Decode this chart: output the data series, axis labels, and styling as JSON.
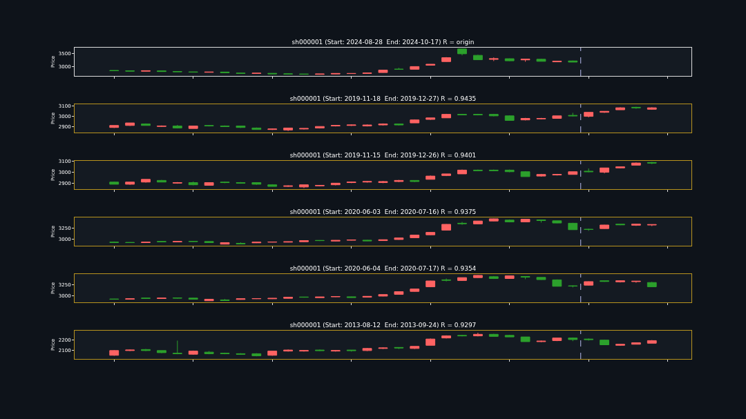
{
  "chart_data": [
    {
      "type": "candlestick",
      "title": "sh000001 (Start: 2024-08-28  End: 2024-10-17) R = origin",
      "ylabel": "Price",
      "tick_labels": "y",
      "categories": [
        null,
        null,
        null,
        null,
        null,
        null,
        null,
        null,
        null,
        null,
        null,
        null,
        null,
        null,
        null,
        null,
        null,
        null,
        null,
        null,
        null,
        null,
        null,
        null,
        null,
        null,
        null,
        null,
        null,
        null,
        null,
        null,
        null,
        null,
        null,
        null,
        null,
        null,
        null
      ],
      "ohlc": [
        null,
        null,
        [
          2850,
          2855,
          2830,
          2840
        ],
        [
          2835,
          2840,
          2815,
          2825
        ],
        [
          2820,
          2850,
          2815,
          2840
        ],
        [
          2835,
          2840,
          2805,
          2810
        ],
        [
          2810,
          2820,
          2795,
          2800
        ],
        [
          2795,
          2800,
          2780,
          2785
        ],
        [
          2780,
          2795,
          2775,
          2790
        ],
        [
          2790,
          2790,
          2765,
          2765
        ],
        [
          2750,
          2760,
          2730,
          2735
        ],
        [
          2735,
          2745,
          2720,
          2745
        ],
        [
          2740,
          2745,
          2720,
          2720
        ],
        [
          2720,
          2730,
          2710,
          2715
        ],
        [
          2715,
          2720,
          2700,
          2705
        ],
        [
          2700,
          2720,
          2690,
          2715
        ],
        [
          2715,
          2740,
          2710,
          2735
        ],
        [
          2730,
          2745,
          2725,
          2735
        ],
        [
          2735,
          2755,
          2730,
          2750
        ],
        [
          2770,
          2865,
          2765,
          2865
        ],
        [
          2900,
          2950,
          2890,
          2895
        ],
        [
          2895,
          3000,
          2890,
          3000
        ],
        [
          3050,
          3090,
          3045,
          3090
        ],
        [
          3190,
          3360,
          3185,
          3340
        ],
        [
          3675,
          3675,
          3430,
          3490
        ],
        [
          3430,
          3450,
          3250,
          3260
        ],
        [
          3275,
          3350,
          3210,
          3300
        ],
        [
          3300,
          3310,
          3210,
          3220
        ],
        [
          3255,
          3285,
          3185,
          3285
        ],
        [
          3280,
          3300,
          3200,
          3200
        ],
        [
          3180,
          3220,
          3170,
          3205
        ],
        [
          3215,
          3230,
          3170,
          3170
        ],
        null,
        null,
        null,
        null,
        null,
        null,
        null
      ],
      "colors": [
        null,
        null,
        "#2ca02c",
        "#2ca02c",
        "#ff6363",
        "#2ca02c",
        "#2ca02c",
        "#2ca02c",
        "#ff6363",
        "#2ca02c",
        "#2ca02c",
        "#ff6363",
        "#2ca02c",
        "#2ca02c",
        "#2ca02c",
        "#ff6363",
        "#ff6363",
        "#ff6363",
        "#ff6363",
        "#ff6363",
        "#2ca02c",
        "#ff6363",
        "#ff6363",
        "#ff6363",
        "#2ca02c",
        "#2ca02c",
        "#ff6363",
        "#2ca02c",
        "#ff6363",
        "#2ca02c",
        "#ff6363",
        "#2ca02c",
        null,
        null,
        null,
        null,
        null,
        null,
        null
      ],
      "ylim": [
        2640,
        3725
      ],
      "yticks": [
        3000,
        3500
      ]
    },
    {
      "type": "candlestick",
      "title": "sh000001 (Start: 2019-11-18  End: 2019-12-27) R = 0.9435",
      "ylabel": "Price",
      "tick_labels": "y",
      "categories": [
        null,
        null,
        null,
        null,
        null,
        null,
        null,
        null,
        null,
        null,
        null,
        null,
        null,
        null,
        null,
        null,
        null,
        null,
        null,
        null,
        null,
        null,
        null,
        null,
        null,
        null,
        null,
        null,
        null,
        null,
        null,
        null,
        null,
        null,
        null,
        null,
        null,
        null,
        null
      ],
      "ohlc": [
        null,
        null,
        [
          2890,
          2910,
          2885,
          2910
        ],
        [
          2910,
          2935,
          2905,
          2935
        ],
        [
          2925,
          2930,
          2910,
          2910
        ],
        [
          2900,
          2910,
          2895,
          2905
        ],
        [
          2905,
          2915,
          2880,
          2885
        ],
        [
          2880,
          2905,
          2880,
          2905
        ],
        [
          2910,
          2915,
          2900,
          2905
        ],
        [
          2905,
          2910,
          2895,
          2900
        ],
        [
          2905,
          2905,
          2885,
          2890
        ],
        [
          2885,
          2890,
          2870,
          2870
        ],
        [
          2870,
          2880,
          2865,
          2875
        ],
        [
          2865,
          2885,
          2855,
          2885
        ],
        [
          2875,
          2880,
          2870,
          2880
        ],
        [
          2885,
          2900,
          2880,
          2900
        ],
        [
          2905,
          2915,
          2900,
          2910
        ],
        [
          2910,
          2920,
          2905,
          2915
        ],
        [
          2905,
          2920,
          2900,
          2915
        ],
        [
          2915,
          2930,
          2910,
          2925
        ],
        [
          2925,
          2925,
          2910,
          2915
        ],
        [
          2935,
          2970,
          2935,
          2965
        ],
        [
          2970,
          2985,
          2965,
          2985
        ],
        [
          2985,
          3025,
          2985,
          3020
        ],
        [
          3020,
          3025,
          3015,
          3015
        ],
        [
          3020,
          3025,
          3010,
          3015
        ],
        [
          3020,
          3025,
          3000,
          3005
        ],
        [
          3005,
          3010,
          2960,
          2960
        ],
        [
          2965,
          2985,
          2960,
          2980
        ],
        [
          2975,
          2985,
          2970,
          2980
        ],
        [
          2980,
          3005,
          2980,
          3005
        ],
        [
          3010,
          3035,
          3000,
          3005
        ],
        [
          3000,
          3040,
          2990,
          3040
        ],
        [
          3040,
          3050,
          3035,
          3050
        ],
        [
          3065,
          3090,
          3065,
          3085
        ],
        [
          3090,
          3095,
          3075,
          3085
        ],
        [
          3070,
          3090,
          3065,
          3085
        ],
        null,
        null
      ],
      "colors": [
        null,
        null,
        "#ff6363",
        "#ff6363",
        "#2ca02c",
        "#ff6363",
        "#2ca02c",
        "#ff6363",
        "#2ca02c",
        "#2ca02c",
        "#2ca02c",
        "#2ca02c",
        "#ff6363",
        "#ff6363",
        "#ff6363",
        "#ff6363",
        "#ff6363",
        "#ff6363",
        "#ff6363",
        "#ff6363",
        "#2ca02c",
        "#ff6363",
        "#ff6363",
        "#ff6363",
        "#2ca02c",
        "#2ca02c",
        "#2ca02c",
        "#2ca02c",
        "#ff6363",
        "#ff6363",
        "#ff6363",
        "#2ca02c",
        "#ff6363",
        "#ff6363",
        "#ff6363",
        "#2ca02c",
        "#ff6363",
        null,
        null
      ],
      "ylim": [
        2840,
        3120
      ],
      "yticks": [
        2900,
        3000,
        3100
      ]
    },
    {
      "type": "candlestick",
      "title": "sh000001 (Start: 2019-11-15  End: 2019-12-26) R = 0.9401",
      "ylabel": "Price",
      "tick_labels": "y",
      "categories": [
        null,
        null,
        null,
        null,
        null,
        null,
        null,
        null,
        null,
        null,
        null,
        null,
        null,
        null,
        null,
        null,
        null,
        null,
        null,
        null,
        null,
        null,
        null,
        null,
        null,
        null,
        null,
        null,
        null,
        null,
        null,
        null,
        null,
        null,
        null,
        null,
        null,
        null,
        null
      ],
      "ohlc": [
        null,
        null,
        [
          2910,
          2915,
          2890,
          2890
        ],
        [
          2890,
          2910,
          2885,
          2910
        ],
        [
          2910,
          2935,
          2905,
          2935
        ],
        [
          2925,
          2930,
          2910,
          2910
        ],
        [
          2900,
          2910,
          2895,
          2905
        ],
        [
          2905,
          2915,
          2880,
          2885
        ],
        [
          2880,
          2905,
          2880,
          2905
        ],
        [
          2910,
          2915,
          2900,
          2905
        ],
        [
          2905,
          2910,
          2895,
          2900
        ],
        [
          2905,
          2905,
          2885,
          2890
        ],
        [
          2885,
          2890,
          2870,
          2870
        ],
        [
          2870,
          2880,
          2865,
          2875
        ],
        [
          2865,
          2885,
          2855,
          2885
        ],
        [
          2875,
          2880,
          2870,
          2880
        ],
        [
          2885,
          2900,
          2880,
          2900
        ],
        [
          2905,
          2915,
          2900,
          2910
        ],
        [
          2910,
          2920,
          2905,
          2915
        ],
        [
          2905,
          2920,
          2900,
          2915
        ],
        [
          2915,
          2930,
          2910,
          2925
        ],
        [
          2925,
          2925,
          2910,
          2915
        ],
        [
          2935,
          2970,
          2935,
          2965
        ],
        [
          2970,
          2985,
          2965,
          2985
        ],
        [
          2985,
          3025,
          2985,
          3020
        ],
        [
          3020,
          3025,
          3015,
          3015
        ],
        [
          3020,
          3025,
          3010,
          3015
        ],
        [
          3020,
          3025,
          3000,
          3005
        ],
        [
          3005,
          3010,
          2960,
          2960
        ],
        [
          2965,
          2985,
          2960,
          2980
        ],
        [
          2975,
          2985,
          2970,
          2980
        ],
        [
          2980,
          3005,
          2980,
          3005
        ],
        [
          3010,
          3035,
          3000,
          3005
        ],
        [
          3000,
          3040,
          2990,
          3040
        ],
        [
          3040,
          3050,
          3035,
          3050
        ],
        [
          3065,
          3090,
          3065,
          3085
        ],
        [
          3090,
          3095,
          3075,
          3085
        ],
        null,
        null
      ],
      "colors": [
        null,
        null,
        "#2ca02c",
        "#ff6363",
        "#ff6363",
        "#2ca02c",
        "#ff6363",
        "#2ca02c",
        "#ff6363",
        "#2ca02c",
        "#2ca02c",
        "#2ca02c",
        "#2ca02c",
        "#ff6363",
        "#ff6363",
        "#ff6363",
        "#ff6363",
        "#ff6363",
        "#ff6363",
        "#ff6363",
        "#ff6363",
        "#2ca02c",
        "#ff6363",
        "#ff6363",
        "#ff6363",
        "#2ca02c",
        "#2ca02c",
        "#2ca02c",
        "#2ca02c",
        "#ff6363",
        "#ff6363",
        "#ff6363",
        "#2ca02c",
        "#ff6363",
        "#ff6363",
        "#ff6363",
        "#2ca02c",
        null,
        null
      ],
      "ylim": [
        2845,
        3105
      ],
      "yticks": [
        2900,
        3000,
        3100
      ]
    },
    {
      "type": "candlestick",
      "title": "sh000001 (Start: 2020-06-03  End: 2020-07-16) R = 0.9375",
      "ylabel": "Price",
      "tick_labels": "y",
      "categories": [
        null,
        null,
        null,
        null,
        null,
        null,
        null,
        null,
        null,
        null,
        null,
        null,
        null,
        null,
        null,
        null,
        null,
        null,
        null,
        null,
        null,
        null,
        null,
        null,
        null,
        null,
        null,
        null,
        null,
        null,
        null,
        null,
        null,
        null,
        null,
        null,
        null,
        null,
        null
      ],
      "ohlc": [
        null,
        null,
        [
          2930,
          2945,
          2920,
          2925
        ],
        [
          2925,
          2930,
          2915,
          2920
        ],
        [
          2920,
          2935,
          2915,
          2930
        ],
        [
          2945,
          2950,
          2930,
          2940
        ],
        [
          2935,
          2945,
          2930,
          2945
        ],
        [
          2950,
          2955,
          2935,
          2945
        ],
        [
          2945,
          2950,
          2915,
          2920
        ],
        [
          2885,
          2925,
          2880,
          2920
        ],
        [
          2905,
          2925,
          2885,
          2890
        ],
        [
          2915,
          2935,
          2910,
          2930
        ],
        [
          2930,
          2940,
          2925,
          2935
        ],
        [
          2930,
          2945,
          2925,
          2940
        ],
        [
          2940,
          2970,
          2935,
          2965
        ],
        [
          2970,
          2975,
          2955,
          2965
        ],
        [
          2955,
          2975,
          2950,
          2970
        ],
        [
          2975,
          2985,
          2970,
          2980
        ],
        [
          2975,
          2980,
          2955,
          2960
        ],
        [
          2965,
          2985,
          2960,
          2985
        ],
        [
          2990,
          3025,
          2985,
          3025
        ],
        [
          3030,
          3090,
          3025,
          3090
        ],
        [
          3095,
          3155,
          3090,
          3150
        ],
        [
          3200,
          3335,
          3195,
          3330
        ],
        [
          3355,
          3385,
          3320,
          3345
        ],
        [
          3340,
          3405,
          3330,
          3405
        ],
        [
          3405,
          3460,
          3400,
          3455
        ],
        [
          3425,
          3440,
          3375,
          3385
        ],
        [
          3385,
          3445,
          3380,
          3445
        ],
        [
          3430,
          3435,
          3370,
          3415
        ],
        [
          3410,
          3410,
          3355,
          3360
        ],
        [
          3355,
          3365,
          3205,
          3210
        ],
        [
          3220,
          3230,
          3185,
          3215
        ],
        [
          3235,
          3320,
          3230,
          3315
        ],
        [
          3335,
          3335,
          3310,
          3320
        ],
        [
          3310,
          3345,
          3295,
          3335
        ],
        [
          3315,
          3330,
          3290,
          3325
        ],
        null,
        null
      ],
      "colors": [
        null,
        null,
        "#2ca02c",
        "#2ca02c",
        "#ff6363",
        "#2ca02c",
        "#ff6363",
        "#2ca02c",
        "#2ca02c",
        "#ff6363",
        "#2ca02c",
        "#ff6363",
        "#ff6363",
        "#ff6363",
        "#ff6363",
        "#2ca02c",
        "#ff6363",
        "#ff6363",
        "#2ca02c",
        "#ff6363",
        "#ff6363",
        "#ff6363",
        "#ff6363",
        "#ff6363",
        "#2ca02c",
        "#ff6363",
        "#ff6363",
        "#2ca02c",
        "#ff6363",
        "#2ca02c",
        "#2ca02c",
        "#2ca02c",
        "#2ca02c",
        "#ff6363",
        "#2ca02c",
        "#ff6363",
        "#ff6363",
        null,
        null
      ],
      "ylim": [
        2850,
        3485
      ],
      "yticks": [
        3000,
        3250
      ]
    },
    {
      "type": "candlestick",
      "title": "sh000001 (Start: 2020-06-04  End: 2020-07-17) R = 0.9354",
      "ylabel": "Price",
      "tick_labels": "y",
      "categories": [
        null,
        null,
        null,
        null,
        null,
        null,
        null,
        null,
        null,
        null,
        null,
        null,
        null,
        null,
        null,
        null,
        null,
        null,
        null,
        null,
        null,
        null,
        null,
        null,
        null,
        null,
        null,
        null,
        null,
        null,
        null,
        null,
        null,
        null,
        null,
        null,
        null,
        null,
        null
      ],
      "ohlc": [
        null,
        null,
        [
          2925,
          2930,
          2915,
          2920
        ],
        [
          2920,
          2935,
          2915,
          2930
        ],
        [
          2945,
          2950,
          2930,
          2940
        ],
        [
          2935,
          2945,
          2930,
          2945
        ],
        [
          2950,
          2955,
          2935,
          2945
        ],
        [
          2945,
          2950,
          2915,
          2920
        ],
        [
          2885,
          2925,
          2880,
          2920
        ],
        [
          2905,
          2925,
          2885,
          2890
        ],
        [
          2915,
          2935,
          2910,
          2930
        ],
        [
          2930,
          2940,
          2925,
          2935
        ],
        [
          2930,
          2945,
          2925,
          2940
        ],
        [
          2940,
          2970,
          2935,
          2965
        ],
        [
          2970,
          2975,
          2955,
          2965
        ],
        [
          2955,
          2975,
          2950,
          2970
        ],
        [
          2975,
          2985,
          2970,
          2980
        ],
        [
          2975,
          2980,
          2955,
          2960
        ],
        [
          2965,
          2985,
          2960,
          2985
        ],
        [
          2990,
          3025,
          2985,
          3025
        ],
        [
          3030,
          3090,
          3025,
          3090
        ],
        [
          3095,
          3155,
          3090,
          3150
        ],
        [
          3200,
          3335,
          3195,
          3330
        ],
        [
          3355,
          3385,
          3320,
          3345
        ],
        [
          3340,
          3405,
          3330,
          3405
        ],
        [
          3405,
          3460,
          3400,
          3455
        ],
        [
          3425,
          3440,
          3375,
          3385
        ],
        [
          3385,
          3445,
          3380,
          3445
        ],
        [
          3430,
          3435,
          3370,
          3415
        ],
        [
          3410,
          3410,
          3355,
          3360
        ],
        [
          3355,
          3365,
          3205,
          3210
        ],
        [
          3220,
          3230,
          3185,
          3215
        ],
        [
          3235,
          3320,
          3230,
          3315
        ],
        [
          3335,
          3335,
          3310,
          3320
        ],
        [
          3310,
          3345,
          3295,
          3335
        ],
        [
          3315,
          3330,
          3290,
          3325
        ],
        [
          3295,
          3310,
          3195,
          3200
        ],
        null,
        null
      ],
      "colors": [
        null,
        null,
        "#2ca02c",
        "#ff6363",
        "#2ca02c",
        "#ff6363",
        "#2ca02c",
        "#2ca02c",
        "#ff6363",
        "#2ca02c",
        "#ff6363",
        "#ff6363",
        "#ff6363",
        "#ff6363",
        "#2ca02c",
        "#ff6363",
        "#ff6363",
        "#2ca02c",
        "#ff6363",
        "#ff6363",
        "#ff6363",
        "#ff6363",
        "#ff6363",
        "#2ca02c",
        "#ff6363",
        "#ff6363",
        "#2ca02c",
        "#ff6363",
        "#2ca02c",
        "#2ca02c",
        "#2ca02c",
        "#2ca02c",
        "#ff6363",
        "#2ca02c",
        "#ff6363",
        "#ff6363",
        "#2ca02c",
        null,
        null
      ],
      "ylim": [
        2850,
        3485
      ],
      "yticks": [
        3000,
        3250
      ]
    },
    {
      "type": "candlestick",
      "title": "sh000001 (Start: 2013-08-12  End: 2013-09-24) R = 0.9297",
      "ylabel": "Price",
      "tick_labels": "y",
      "categories": [
        null,
        null,
        null,
        null,
        null,
        null,
        null,
        null,
        null,
        null,
        null,
        null,
        null,
        null,
        null,
        null,
        null,
        null,
        null,
        null,
        null,
        null,
        null,
        null,
        null,
        null,
        null,
        null,
        null,
        null,
        null,
        null,
        null,
        null,
        null,
        null,
        null,
        null,
        null
      ],
      "ohlc": [
        null,
        null,
        [
          2055,
          2105,
          2050,
          2100
        ],
        [
          2100,
          2110,
          2095,
          2105
        ],
        [
          2110,
          2115,
          2095,
          2100
        ],
        [
          2100,
          2100,
          2075,
          2080
        ],
        [
          2075,
          2195,
          2065,
          2070
        ],
        [
          2065,
          2100,
          2060,
          2095
        ],
        [
          2085,
          2095,
          2065,
          2070
        ],
        [
          2075,
          2080,
          2065,
          2070
        ],
        [
          2070,
          2075,
          2060,
          2065
        ],
        [
          2070,
          2075,
          2045,
          2050
        ],
        [
          2055,
          2095,
          2050,
          2095
        ],
        [
          2095,
          2110,
          2090,
          2105
        ],
        [
          2095,
          2105,
          2090,
          2100
        ],
        [
          2105,
          2110,
          2095,
          2100
        ],
        [
          2095,
          2105,
          2090,
          2100
        ],
        [
          2105,
          2105,
          2090,
          2100
        ],
        [
          2100,
          2125,
          2095,
          2120
        ],
        [
          2120,
          2130,
          2115,
          2125
        ],
        [
          2130,
          2130,
          2115,
          2125
        ],
        [
          2120,
          2140,
          2115,
          2140
        ],
        [
          2150,
          2215,
          2150,
          2210
        ],
        [
          2220,
          2245,
          2215,
          2240
        ],
        [
          2245,
          2250,
          2235,
          2240
        ],
        [
          2240,
          2270,
          2235,
          2255
        ],
        [
          2255,
          2260,
          2235,
          2235
        ],
        [
          2245,
          2250,
          2230,
          2230
        ],
        [
          2230,
          2230,
          2185,
          2185
        ],
        [
          2185,
          2195,
          2180,
          2190
        ],
        [
          2195,
          2220,
          2190,
          2220
        ],
        [
          2220,
          2225,
          2190,
          2205
        ],
        [
          2210,
          2215,
          2195,
          2205
        ],
        [
          2200,
          2205,
          2155,
          2155
        ],
        [
          2150,
          2160,
          2145,
          2160
        ],
        [
          2160,
          2175,
          2160,
          2175
        ],
        [
          2170,
          2200,
          2170,
          2195
        ],
        null,
        null
      ],
      "colors": [
        null,
        null,
        "#ff6363",
        "#ff6363",
        "#2ca02c",
        "#2ca02c",
        "#2ca02c",
        "#ff6363",
        "#2ca02c",
        "#2ca02c",
        "#2ca02c",
        "#2ca02c",
        "#ff6363",
        "#ff6363",
        "#ff6363",
        "#2ca02c",
        "#ff6363",
        "#2ca02c",
        "#ff6363",
        "#ff6363",
        "#2ca02c",
        "#ff6363",
        "#ff6363",
        "#ff6363",
        "#2ca02c",
        "#ff6363",
        "#2ca02c",
        "#2ca02c",
        "#2ca02c",
        "#ff6363",
        "#ff6363",
        "#2ca02c",
        "#2ca02c",
        "#2ca02c",
        "#ff6363",
        "#ff6363",
        "#ff6363",
        null,
        null
      ],
      "ylim": [
        2020,
        2290
      ],
      "yticks": [
        2100,
        2200
      ]
    }
  ]
}
